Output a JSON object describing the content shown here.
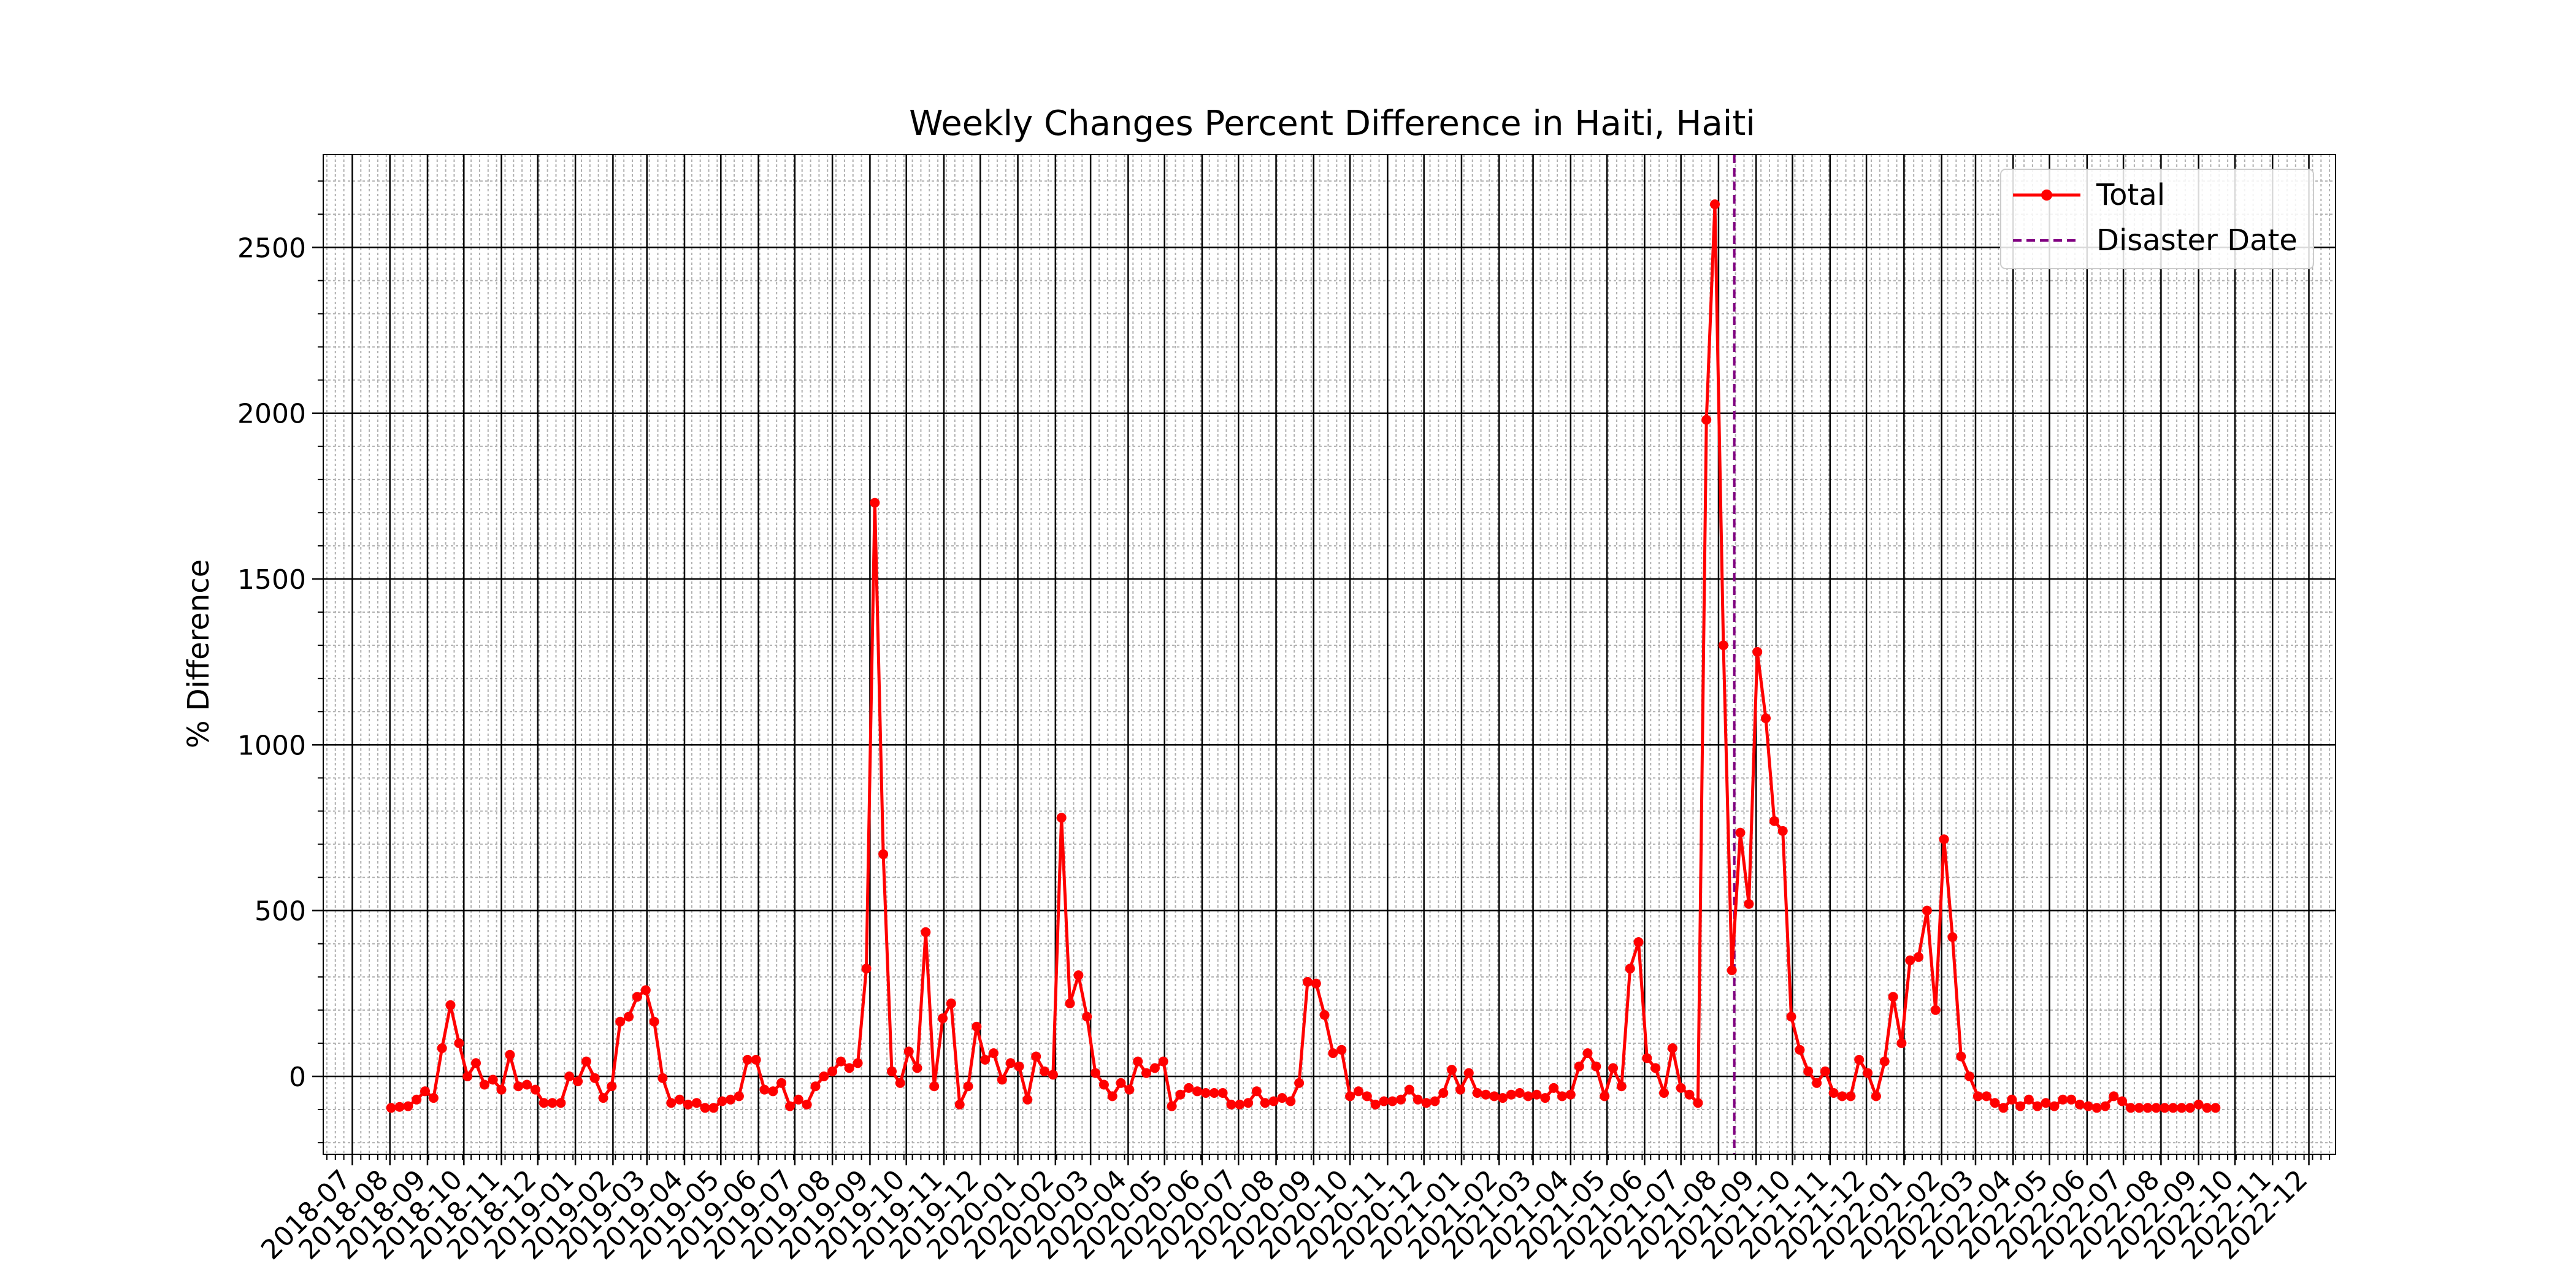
{
  "chart_data": {
    "type": "line",
    "title": "Weekly Changes Percent Difference in Haiti, Haiti",
    "xlabel": "",
    "ylabel": "% Difference",
    "xlim": [
      "2018-06-07",
      "2022-12-23"
    ],
    "ylim": [
      -235,
      2780
    ],
    "grid": true,
    "legend_position": "top-right",
    "x_ticks": [
      "2018-07",
      "2018-08",
      "2018-09",
      "2018-10",
      "2018-11",
      "2018-12",
      "2019-01",
      "2019-02",
      "2019-03",
      "2019-04",
      "2019-05",
      "2019-06",
      "2019-07",
      "2019-08",
      "2019-09",
      "2019-10",
      "2019-11",
      "2019-12",
      "2020-01",
      "2020-02",
      "2020-03",
      "2020-04",
      "2020-05",
      "2020-06",
      "2020-07",
      "2020-08",
      "2020-09",
      "2020-10",
      "2020-11",
      "2020-12",
      "2021-01",
      "2021-02",
      "2021-03",
      "2021-04",
      "2021-05",
      "2021-06",
      "2021-07",
      "2021-08",
      "2021-09",
      "2021-10",
      "2021-11",
      "2021-12",
      "2022-01",
      "2022-02",
      "2022-03",
      "2022-04",
      "2022-05",
      "2022-06",
      "2022-07",
      "2022-08",
      "2022-09",
      "2022-10",
      "2022-11",
      "2022-12"
    ],
    "y_ticks": [
      0,
      500,
      1000,
      1500,
      2000,
      2500
    ],
    "disaster_date": "2021-08-14",
    "colors": {
      "total": "#ff0000",
      "disaster": "#800080",
      "grid_major": "#000000",
      "grid_minor": "#b0b0b0"
    },
    "legend": [
      {
        "label": "Total",
        "style": "line-marker",
        "color": "#ff0000"
      },
      {
        "label": "Disaster Date",
        "style": "dashed",
        "color": "#800080"
      }
    ],
    "series": [
      {
        "name": "Total",
        "start": "2018-08-02",
        "interval_days": 7,
        "values": [
          -95,
          -92,
          -90,
          -70,
          -45,
          -65,
          85,
          215,
          100,
          0,
          40,
          -25,
          -10,
          -40,
          65,
          -30,
          -25,
          -40,
          -80,
          -80,
          -80,
          0,
          -15,
          45,
          -5,
          -65,
          -30,
          165,
          180,
          240,
          260,
          165,
          -5,
          -80,
          -70,
          -85,
          -80,
          -95,
          -95,
          -75,
          -70,
          -60,
          50,
          50,
          -40,
          -45,
          -20,
          -90,
          -70,
          -85,
          -30,
          0,
          15,
          45,
          25,
          40,
          325,
          1730,
          670,
          15,
          -20,
          75,
          25,
          435,
          -30,
          175,
          220,
          -85,
          -30,
          150,
          50,
          70,
          -10,
          40,
          30,
          -70,
          60,
          15,
          5,
          780,
          220,
          305,
          180,
          10,
          -25,
          -60,
          -20,
          -40,
          45,
          10,
          25,
          45,
          -90,
          -55,
          -35,
          -45,
          -50,
          -50,
          -50,
          -85,
          -85,
          -80,
          -45,
          -80,
          -75,
          -65,
          -75,
          -20,
          285,
          280,
          185,
          70,
          80,
          -60,
          -45,
          -60,
          -85,
          -75,
          -75,
          -70,
          -40,
          -70,
          -80,
          -75,
          -50,
          20,
          -40,
          10,
          -50,
          -55,
          -60,
          -65,
          -55,
          -50,
          -60,
          -55,
          -65,
          -35,
          -60,
          -55,
          30,
          70,
          30,
          -60,
          25,
          -30,
          325,
          405,
          55,
          25,
          -50,
          85,
          -35,
          -55,
          -80,
          1980,
          2630,
          1300,
          320,
          735,
          520,
          1280,
          1080,
          770,
          740,
          180,
          80,
          15,
          -20,
          15,
          -50,
          -60,
          -60,
          50,
          10,
          -60,
          45,
          240,
          100,
          350,
          360,
          500,
          200,
          715,
          420,
          60,
          0,
          -60,
          -60,
          -80,
          -95,
          -70,
          -90,
          -70,
          -90,
          -80,
          -90,
          -70,
          -70,
          -85,
          -90,
          -95,
          -90,
          -60,
          -75,
          -95,
          -95,
          -95,
          -95,
          -95,
          -95,
          -95,
          -95,
          -85,
          -95,
          -95
        ]
      }
    ]
  }
}
